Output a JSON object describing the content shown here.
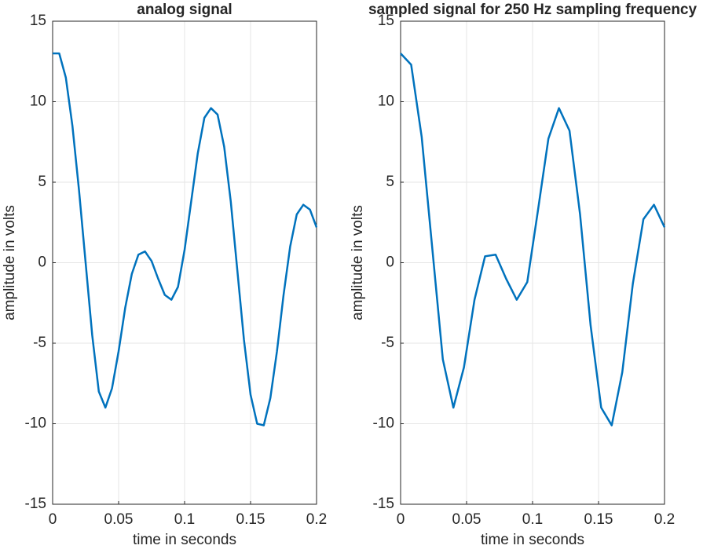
{
  "chart_data": [
    {
      "type": "line",
      "title": "analog signal",
      "xlabel": "time in seconds",
      "ylabel": "amplitude in volts",
      "x": [
        0,
        0.005,
        0.01,
        0.015,
        0.02,
        0.025,
        0.03,
        0.035,
        0.04,
        0.045,
        0.05,
        0.055,
        0.06,
        0.065,
        0.07,
        0.075,
        0.08,
        0.085,
        0.09,
        0.095,
        0.1,
        0.105,
        0.11,
        0.115,
        0.12,
        0.125,
        0.13,
        0.135,
        0.14,
        0.145,
        0.15,
        0.155,
        0.16,
        0.165,
        0.17,
        0.175,
        0.18,
        0.185,
        0.19,
        0.195,
        0.2
      ],
      "series": [
        {
          "color": "#0072bd",
          "values": [
            13,
            13,
            11.5,
            8.5,
            4.5,
            0,
            -4.5,
            -8,
            -9,
            -7.8,
            -5.5,
            -2.8,
            -0.7,
            0.5,
            0.7,
            0.1,
            -1,
            -2,
            -2.3,
            -1.5,
            0.8,
            3.8,
            6.8,
            9,
            9.6,
            9.2,
            7.2,
            3.8,
            -0.5,
            -4.8,
            -8.2,
            -10,
            -10.1,
            -8.4,
            -5.5,
            -2,
            1,
            3,
            3.6,
            3.3,
            2.2
          ]
        }
      ],
      "xlim": [
        0,
        0.2
      ],
      "xticks": [
        0,
        0.05,
        0.1,
        0.15,
        0.2
      ],
      "ylim": [
        -15,
        15
      ],
      "yticks": [
        -15,
        -10,
        -5,
        0,
        5,
        10,
        15
      ],
      "grid": true
    },
    {
      "type": "line",
      "title": "sampled signal for 250 Hz sampling frequency",
      "xlabel": "time in seconds",
      "ylabel": "amplitude in volts",
      "x": [
        0,
        0.008,
        0.016,
        0.024,
        0.032,
        0.04,
        0.048,
        0.056,
        0.064,
        0.072,
        0.08,
        0.088,
        0.096,
        0.104,
        0.112,
        0.12,
        0.128,
        0.136,
        0.144,
        0.152,
        0.16,
        0.168,
        0.176,
        0.184,
        0.192,
        0.2
      ],
      "series": [
        {
          "color": "#0072bd",
          "values": [
            13,
            12.3,
            7.8,
            0.9,
            -6,
            -9,
            -6.5,
            -2.3,
            0.4,
            0.5,
            -1,
            -2.3,
            -1.2,
            3.2,
            7.7,
            9.6,
            8.2,
            3,
            -3.9,
            -9,
            -10.1,
            -6.8,
            -1.3,
            2.7,
            3.6,
            2.2
          ]
        }
      ],
      "xlim": [
        0,
        0.2
      ],
      "xticks": [
        0,
        0.05,
        0.1,
        0.15,
        0.2
      ],
      "ylim": [
        -15,
        15
      ],
      "yticks": [
        -15,
        -10,
        -5,
        0,
        5,
        10,
        15
      ],
      "grid": true
    }
  ]
}
